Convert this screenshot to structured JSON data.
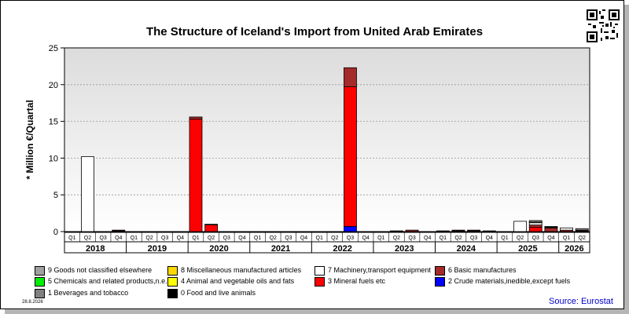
{
  "title": "The Structure of Iceland's Import from United Arab Emirates",
  "date_text": "28.8.2026",
  "source_text": "Source: Eurostat",
  "chart_data": {
    "type": "bar",
    "stacked": true,
    "title": "The Structure of Iceland's Import from United Arab Emirates",
    "ylabel": "* Million €/Quartal",
    "xlabel": "",
    "ylim": [
      0,
      25
    ],
    "yticks": [
      0,
      5,
      10,
      15,
      20,
      25
    ],
    "grid": true,
    "legend_position": "bottom",
    "quarters": [
      "Q1",
      "Q2",
      "Q3",
      "Q4",
      "Q1",
      "Q2",
      "Q3",
      "Q4",
      "Q1",
      "Q2",
      "Q3",
      "Q4",
      "Q1",
      "Q2",
      "Q3",
      "Q4",
      "Q1",
      "Q2",
      "Q3",
      "Q4",
      "Q1",
      "Q2",
      "Q3",
      "Q4",
      "Q1",
      "Q2",
      "Q3",
      "Q4",
      "Q1",
      "Q2",
      "Q3",
      "Q4",
      "Q1",
      "Q2"
    ],
    "years": [
      "2018",
      "2019",
      "2020",
      "2021",
      "2022",
      "2023",
      "2024",
      "2025",
      "2026"
    ],
    "series": [
      {
        "name": "0 Food and live animals",
        "color": "#000000",
        "values": [
          0,
          0,
          0,
          0.1,
          0,
          0,
          0,
          0,
          0,
          0,
          0,
          0,
          0,
          0,
          0,
          0,
          0,
          0,
          0,
          0,
          0,
          0,
          0,
          0,
          0,
          0.1,
          0.1,
          0,
          0,
          0,
          0,
          0,
          0,
          0.1
        ]
      },
      {
        "name": "2 Crude materials,inedible,except fuels",
        "color": "#0000ff",
        "values": [
          0,
          0,
          0,
          0,
          0,
          0,
          0,
          0,
          0,
          0,
          0,
          0,
          0,
          0,
          0,
          0,
          0,
          0,
          0.7,
          0,
          0,
          0,
          0,
          0,
          0,
          0,
          0,
          0,
          0,
          0,
          0,
          0,
          0,
          0
        ]
      },
      {
        "name": "3 Mineral fuels etc",
        "color": "#ff0000",
        "values": [
          0,
          0,
          0,
          0,
          0,
          0,
          0,
          0,
          15.3,
          0.9,
          0,
          0,
          0,
          0,
          0,
          0,
          0,
          0,
          19.0,
          0,
          0,
          0,
          0,
          0,
          0,
          0,
          0,
          0,
          0,
          0,
          0.6,
          0,
          0,
          0
        ]
      },
      {
        "name": "6 Basic manufactures",
        "color": "#a52a2a",
        "values": [
          0,
          0,
          0,
          0.1,
          0,
          0,
          0,
          0,
          0.3,
          0.1,
          0,
          0,
          0,
          0,
          0,
          0,
          0,
          0,
          2.6,
          0,
          0,
          0.1,
          0.2,
          0,
          0.1,
          0.1,
          0.1,
          0.1,
          0,
          0,
          0.3,
          0.5,
          0.2,
          0.1
        ]
      },
      {
        "name": "7 Machinery,transport equipment",
        "color": "#ffffff",
        "values": [
          0,
          10.2,
          0,
          0,
          0,
          0,
          0,
          0,
          0,
          0,
          0,
          0,
          0,
          0,
          0,
          0,
          0,
          0,
          0,
          0,
          0,
          0,
          0,
          0,
          0,
          0,
          0,
          0,
          0,
          1.4,
          0.3,
          0.1,
          0.3,
          0
        ]
      },
      {
        "name": "8 Miscellaneous manufactured articles",
        "color": "#ffd700",
        "values": [
          0,
          0,
          0,
          0,
          0,
          0,
          0,
          0,
          0,
          0,
          0,
          0,
          0,
          0,
          0,
          0,
          0,
          0,
          0,
          0,
          0,
          0,
          0,
          0,
          0,
          0,
          0,
          0,
          0,
          0,
          0.1,
          0,
          0,
          0
        ]
      },
      {
        "name": "9 Goods not classified elsewhere",
        "color": "#a0a0a0",
        "values": [
          0,
          0,
          0,
          0,
          0,
          0,
          0,
          0,
          0,
          0,
          0,
          0,
          0,
          0,
          0,
          0,
          0,
          0,
          0,
          0,
          0,
          0,
          0,
          0,
          0,
          0,
          0,
          0,
          0,
          0,
          0.2,
          0.1,
          0,
          0.2
        ]
      }
    ],
    "legend": [
      {
        "label": "9 Goods not classified elsewhere",
        "color": "#a0a0a0"
      },
      {
        "label": "8 Miscellaneous manufactured articles",
        "color": "#ffd700"
      },
      {
        "label": "7 Machinery,transport equipment",
        "color": "#ffffff"
      },
      {
        "label": "6 Basic manufactures",
        "color": "#a52a2a"
      },
      {
        "label": "5 Chemicals and related products,n.e.s.",
        "color": "#00ee00"
      },
      {
        "label": "4 Animal and vegetable oils and fats",
        "color": "#ffff00"
      },
      {
        "label": "3 Mineral fuels etc",
        "color": "#ff0000"
      },
      {
        "label": "2 Crude materials,inedible,except fuels",
        "color": "#0000ff"
      },
      {
        "label": "1 Beverages and tobacco",
        "color": "#808080"
      },
      {
        "label": "0 Food and live animals",
        "color": "#000000"
      }
    ]
  }
}
